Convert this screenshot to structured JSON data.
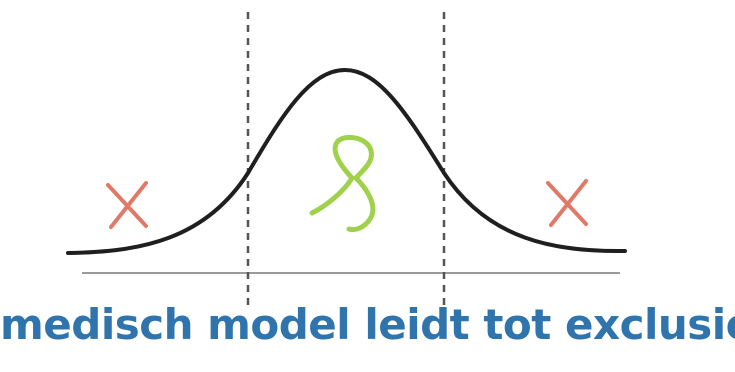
{
  "caption": "medisch model leidt tot exclusie",
  "colors": {
    "curve": "#1f1f1f",
    "baseline": "#9a9a9a",
    "dashed_lines": "#555555",
    "cross": "#e07a68",
    "check_mark": "#9fd24a",
    "caption": "#2f74ad"
  },
  "icons": {
    "left_region": "cross-icon",
    "middle_region": "check-scribble-icon",
    "right_region": "cross-icon"
  }
}
